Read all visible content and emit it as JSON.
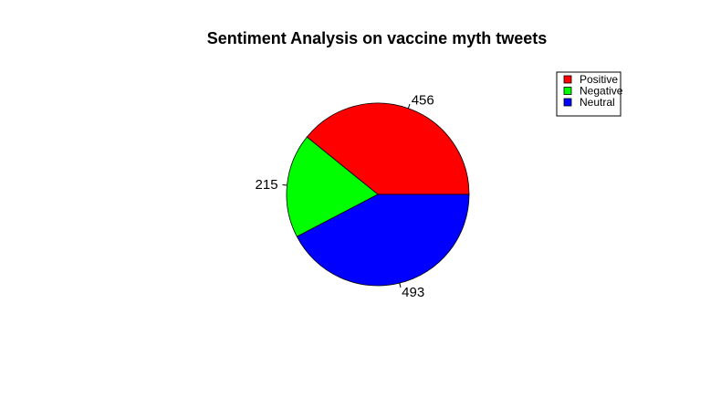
{
  "chart_data": {
    "type": "pie",
    "title": "Sentiment Analysis on vaccine myth tweets",
    "categories": [
      "Positive",
      "Negative",
      "Neutral"
    ],
    "values": [
      456,
      215,
      493
    ],
    "colors": [
      "#ff0000",
      "#00ff00",
      "#0000ff"
    ],
    "start_angle_deg": 0,
    "direction": "counterclockwise",
    "legend": {
      "placement": "top-right",
      "entries": [
        "Positive",
        "Negative",
        "Neutral"
      ]
    }
  }
}
